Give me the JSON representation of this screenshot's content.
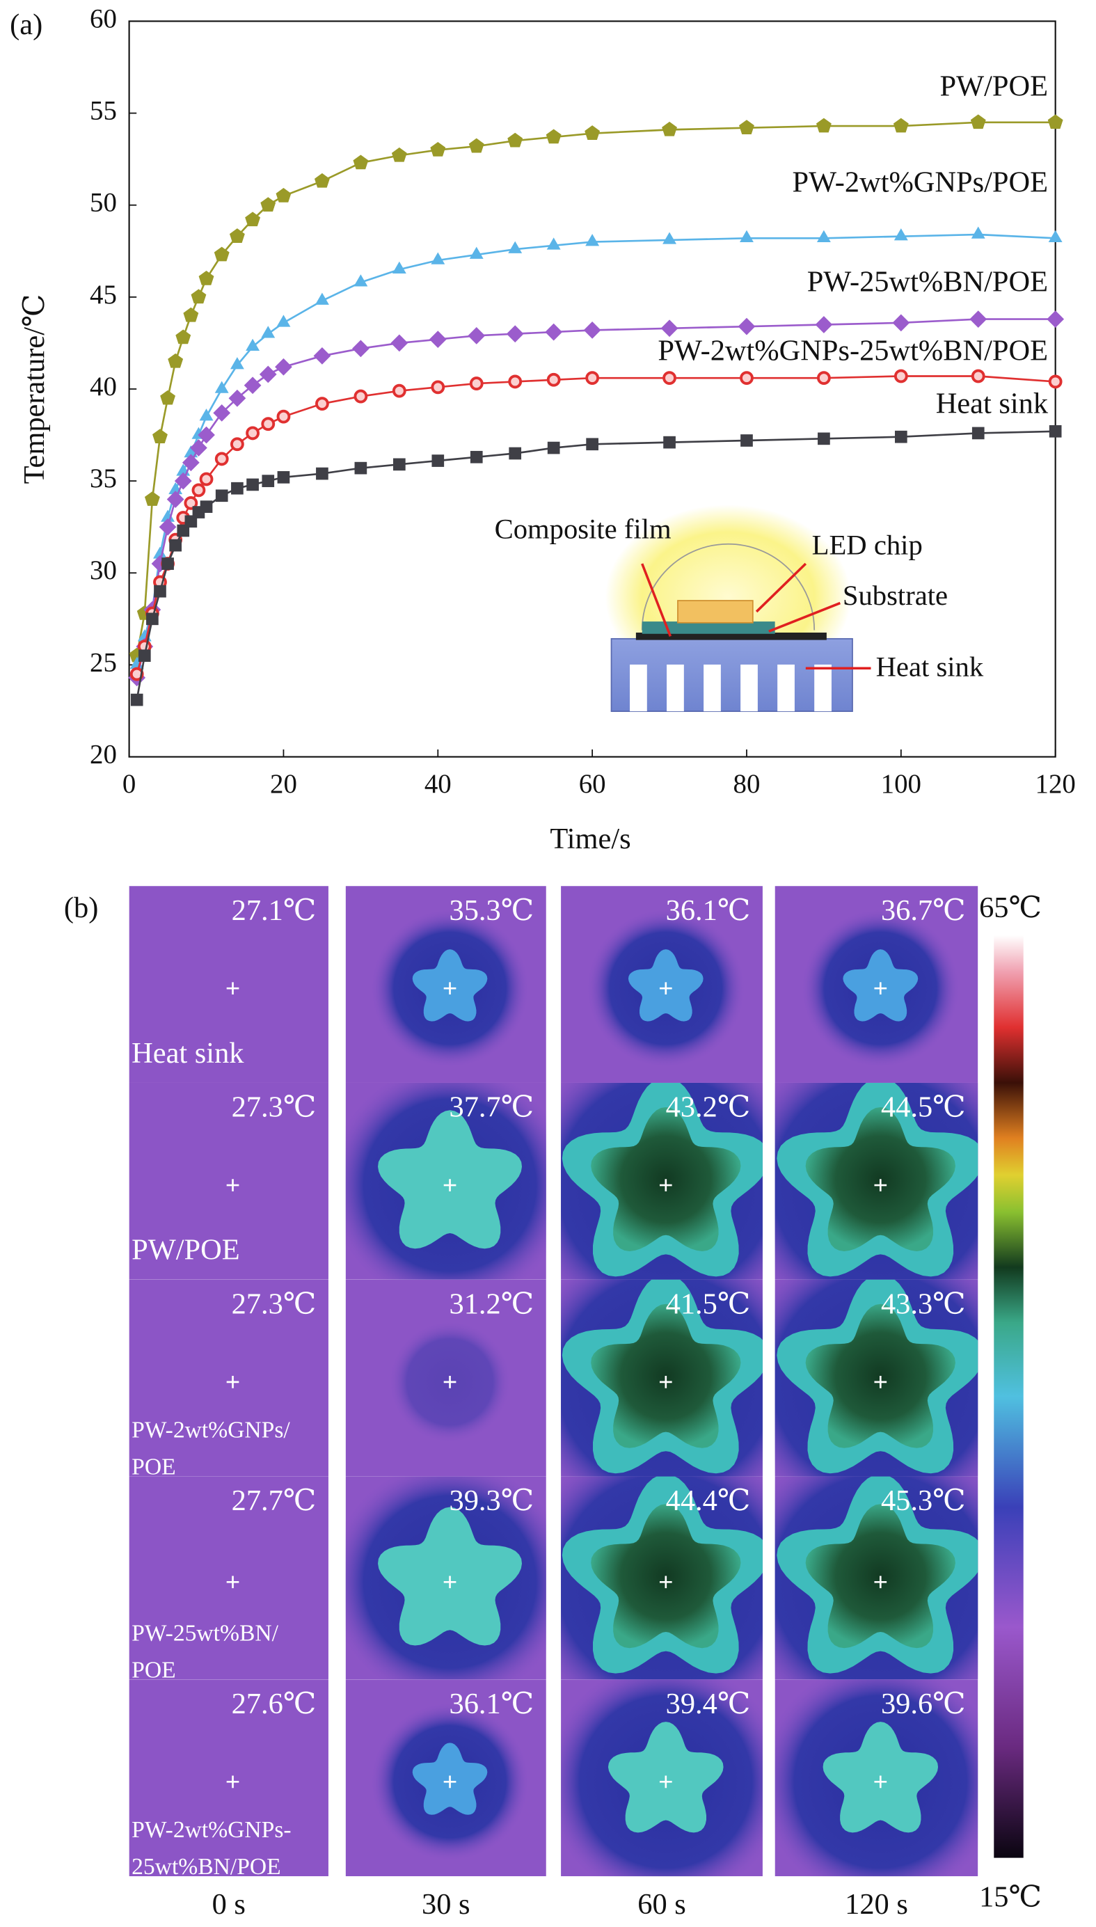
{
  "chart_data": {
    "type": "line",
    "panel_label": "(a)",
    "x_label": "Time/s",
    "y_label": "Temperature/℃",
    "x": [
      1,
      2,
      3,
      4,
      5,
      6,
      7,
      8,
      9,
      10,
      12,
      14,
      16,
      18,
      20,
      25,
      30,
      35,
      40,
      45,
      50,
      55,
      60,
      70,
      80,
      90,
      100,
      110,
      120
    ],
    "series": [
      {
        "name": "PW/POE",
        "color": "#9a9a28",
        "marker": "pentagon",
        "values": [
          25.5,
          27.8,
          34,
          37.4,
          39.5,
          41.5,
          42.8,
          44,
          45,
          46,
          47.3,
          48.3,
          49.2,
          50,
          50.5,
          51.3,
          52.3,
          52.7,
          53,
          53.2,
          53.5,
          53.7,
          53.9,
          54.1,
          54.2,
          54.3,
          54.3,
          54.5,
          54.5
        ]
      },
      {
        "name": "PW-2wt%GNPs/POE",
        "color": "#5ab4e8",
        "marker": "triangle",
        "values": [
          25,
          26.5,
          28,
          31,
          33,
          34.5,
          35.5,
          36.5,
          37.5,
          38.5,
          40,
          41.3,
          42.3,
          43,
          43.6,
          44.8,
          45.8,
          46.5,
          47,
          47.3,
          47.6,
          47.8,
          48,
          48.1,
          48.2,
          48.2,
          48.3,
          48.4,
          48.2
        ]
      },
      {
        "name": "PW-25wt%BN/POE",
        "color": "#9b5ccc",
        "marker": "diamond",
        "values": [
          24.3,
          26,
          28,
          30.5,
          32.5,
          34,
          35,
          36,
          36.8,
          37.5,
          38.7,
          39.5,
          40.2,
          40.8,
          41.2,
          41.8,
          42.2,
          42.5,
          42.7,
          42.9,
          43,
          43.1,
          43.2,
          43.3,
          43.4,
          43.5,
          43.6,
          43.8,
          43.8
        ]
      },
      {
        "name": "PW-2wt%GNPs-25wt%BN/POE",
        "color": "#e03030",
        "marker": "circle",
        "values": [
          24.5,
          26,
          27.8,
          29.5,
          30.5,
          31.8,
          33,
          33.8,
          34.5,
          35.1,
          36.2,
          37,
          37.6,
          38.1,
          38.5,
          39.2,
          39.6,
          39.9,
          40.1,
          40.3,
          40.4,
          40.5,
          40.6,
          40.6,
          40.6,
          40.6,
          40.7,
          40.7,
          40.4
        ]
      },
      {
        "name": "Heat sink",
        "color": "#3f3f46",
        "marker": "square",
        "values": [
          23.1,
          25.5,
          27.5,
          29,
          30.5,
          31.5,
          32.3,
          32.8,
          33.3,
          33.6,
          34.2,
          34.6,
          34.8,
          35,
          35.2,
          35.4,
          35.7,
          35.9,
          36.1,
          36.3,
          36.5,
          36.8,
          37,
          37.1,
          37.2,
          37.3,
          37.4,
          37.6,
          37.7
        ]
      }
    ],
    "xlim": [
      0,
      120
    ],
    "xticks": [
      0,
      20,
      40,
      60,
      80,
      100,
      120
    ],
    "ylim": [
      20,
      60
    ],
    "yticks": [
      20,
      25,
      30,
      35,
      40,
      45,
      50,
      55,
      60
    ],
    "inset_labels": [
      "Composite film",
      "LED chip",
      "Substrate",
      "Heat sink"
    ]
  },
  "thermal_images": {
    "panel_label": "(b)",
    "column_labels": [
      "0 s",
      "30 s",
      "60 s",
      "120 s"
    ],
    "rows": [
      {
        "label": [
          "Heat sink"
        ],
        "temperatures": [
          "27.1℃",
          "35.3℃",
          "36.1℃",
          "36.7℃"
        ]
      },
      {
        "label": [
          "PW/POE"
        ],
        "temperatures": [
          "27.3℃",
          "37.7℃",
          "43.2℃",
          "44.5℃"
        ]
      },
      {
        "label": [
          "PW-2wt%GNPs/",
          "POE"
        ],
        "temperatures": [
          "27.3℃",
          "31.2℃",
          "41.5℃",
          "43.3℃"
        ]
      },
      {
        "label": [
          "PW-25wt%BN/",
          "POE"
        ],
        "temperatures": [
          "27.7℃",
          "39.3℃",
          "44.4℃",
          "45.3℃"
        ]
      },
      {
        "label": [
          "PW-2wt%GNPs-",
          "25wt%BN/POE"
        ],
        "temperatures": [
          "27.6℃",
          "36.1℃",
          "39.4℃",
          "39.6℃"
        ]
      }
    ],
    "colorbar": {
      "max_label": "65℃",
      "min_label": "15℃"
    }
  }
}
